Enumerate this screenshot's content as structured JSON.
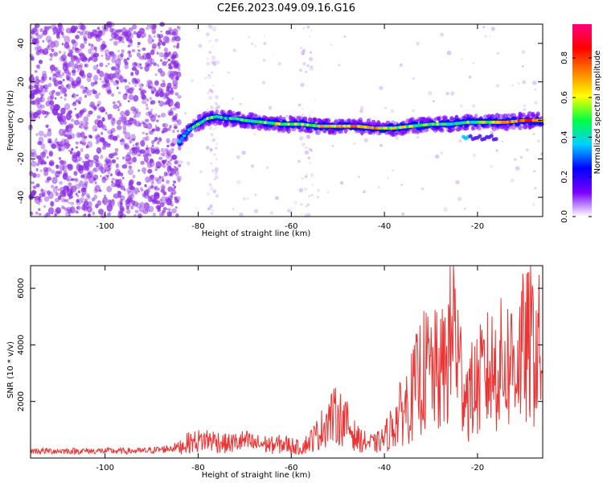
{
  "title": "C2E6.2023.049.09.16.G16",
  "chart_data": [
    {
      "type": "heatmap",
      "xlabel": "Height of straight line (km)",
      "ylabel": "Frequency (Hz)",
      "xlim": [
        -116,
        -6
      ],
      "ylim": [
        -50,
        50
      ],
      "x_ticks": [
        -100,
        -80,
        -60,
        -40,
        -20
      ],
      "y_ticks": [
        -40,
        -20,
        0,
        20,
        40
      ],
      "colorbar": {
        "label": "Normalized spectral amplitude",
        "range": [
          0,
          0.97
        ],
        "ticks": [
          0.0,
          0.2,
          0.4,
          0.6,
          0.8
        ],
        "colors": [
          "#ffffff",
          "#7a00ff",
          "#0000ff",
          "#00d0ff",
          "#00ff40",
          "#ffff00",
          "#ff8000",
          "#ff0000",
          "#ff0080"
        ]
      },
      "ridge": {
        "x": [
          -84,
          -82,
          -80,
          -78,
          -76,
          -74,
          -72,
          -70,
          -66,
          -62,
          -58,
          -54,
          -50,
          -46,
          -42,
          -38,
          -34,
          -30,
          -26,
          -22,
          -18,
          -14,
          -10,
          -6
        ],
        "y": [
          -11,
          -5,
          -2,
          1,
          2,
          1,
          1,
          0,
          -1,
          -2,
          -2,
          -3,
          -3,
          -3,
          -4,
          -4,
          -3,
          -2,
          -2,
          -1,
          -1,
          -1,
          0,
          0
        ],
        "amplitude": [
          0.3,
          0.4,
          0.45,
          0.5,
          0.45,
          0.4,
          0.45,
          0.5,
          0.5,
          0.55,
          0.5,
          0.6,
          0.65,
          0.7,
          0.7,
          0.55,
          0.55,
          0.5,
          0.45,
          0.5,
          0.55,
          0.65,
          0.8,
          0.6
        ]
      },
      "noise_region": {
        "x": [
          -116,
          -84
        ],
        "amplitude": [
          0.1,
          0.3
        ]
      }
    },
    {
      "type": "line",
      "xlabel": "Height of straight line (km)",
      "ylabel": "SNR (10 * v/v)",
      "xlim": [
        -116,
        -6
      ],
      "ylim": [
        0,
        6800
      ],
      "x_ticks": [
        -100,
        -80,
        -60,
        -40,
        -20
      ],
      "y_ticks": [
        2000,
        4000,
        6000
      ],
      "color": "#ee3333",
      "series": [
        {
          "x": [
            -116,
            -110,
            -104,
            -98,
            -92,
            -88,
            -84,
            -82,
            -80,
            -78,
            -76,
            -74,
            -72,
            -70,
            -68,
            -66,
            -64,
            -62,
            -60,
            -58,
            -56,
            -54,
            -52,
            -50,
            -48,
            -46,
            -44,
            -42,
            -40,
            -38,
            -36,
            -34,
            -32,
            -30,
            -28,
            -26,
            -25,
            -24,
            -22,
            -20,
            -18,
            -16,
            -14,
            -12,
            -10,
            -8,
            -6
          ],
          "values": [
            250,
            250,
            250,
            250,
            250,
            300,
            400,
            550,
            600,
            650,
            600,
            500,
            550,
            600,
            500,
            500,
            450,
            500,
            450,
            350,
            600,
            900,
            1400,
            1500,
            1200,
            700,
            550,
            500,
            700,
            1200,
            1700,
            2200,
            3000,
            3100,
            2900,
            3800,
            5000,
            3200,
            2200,
            2600,
            3000,
            3200,
            3300,
            3500,
            3800,
            4000,
            3600
          ]
        }
      ]
    }
  ]
}
